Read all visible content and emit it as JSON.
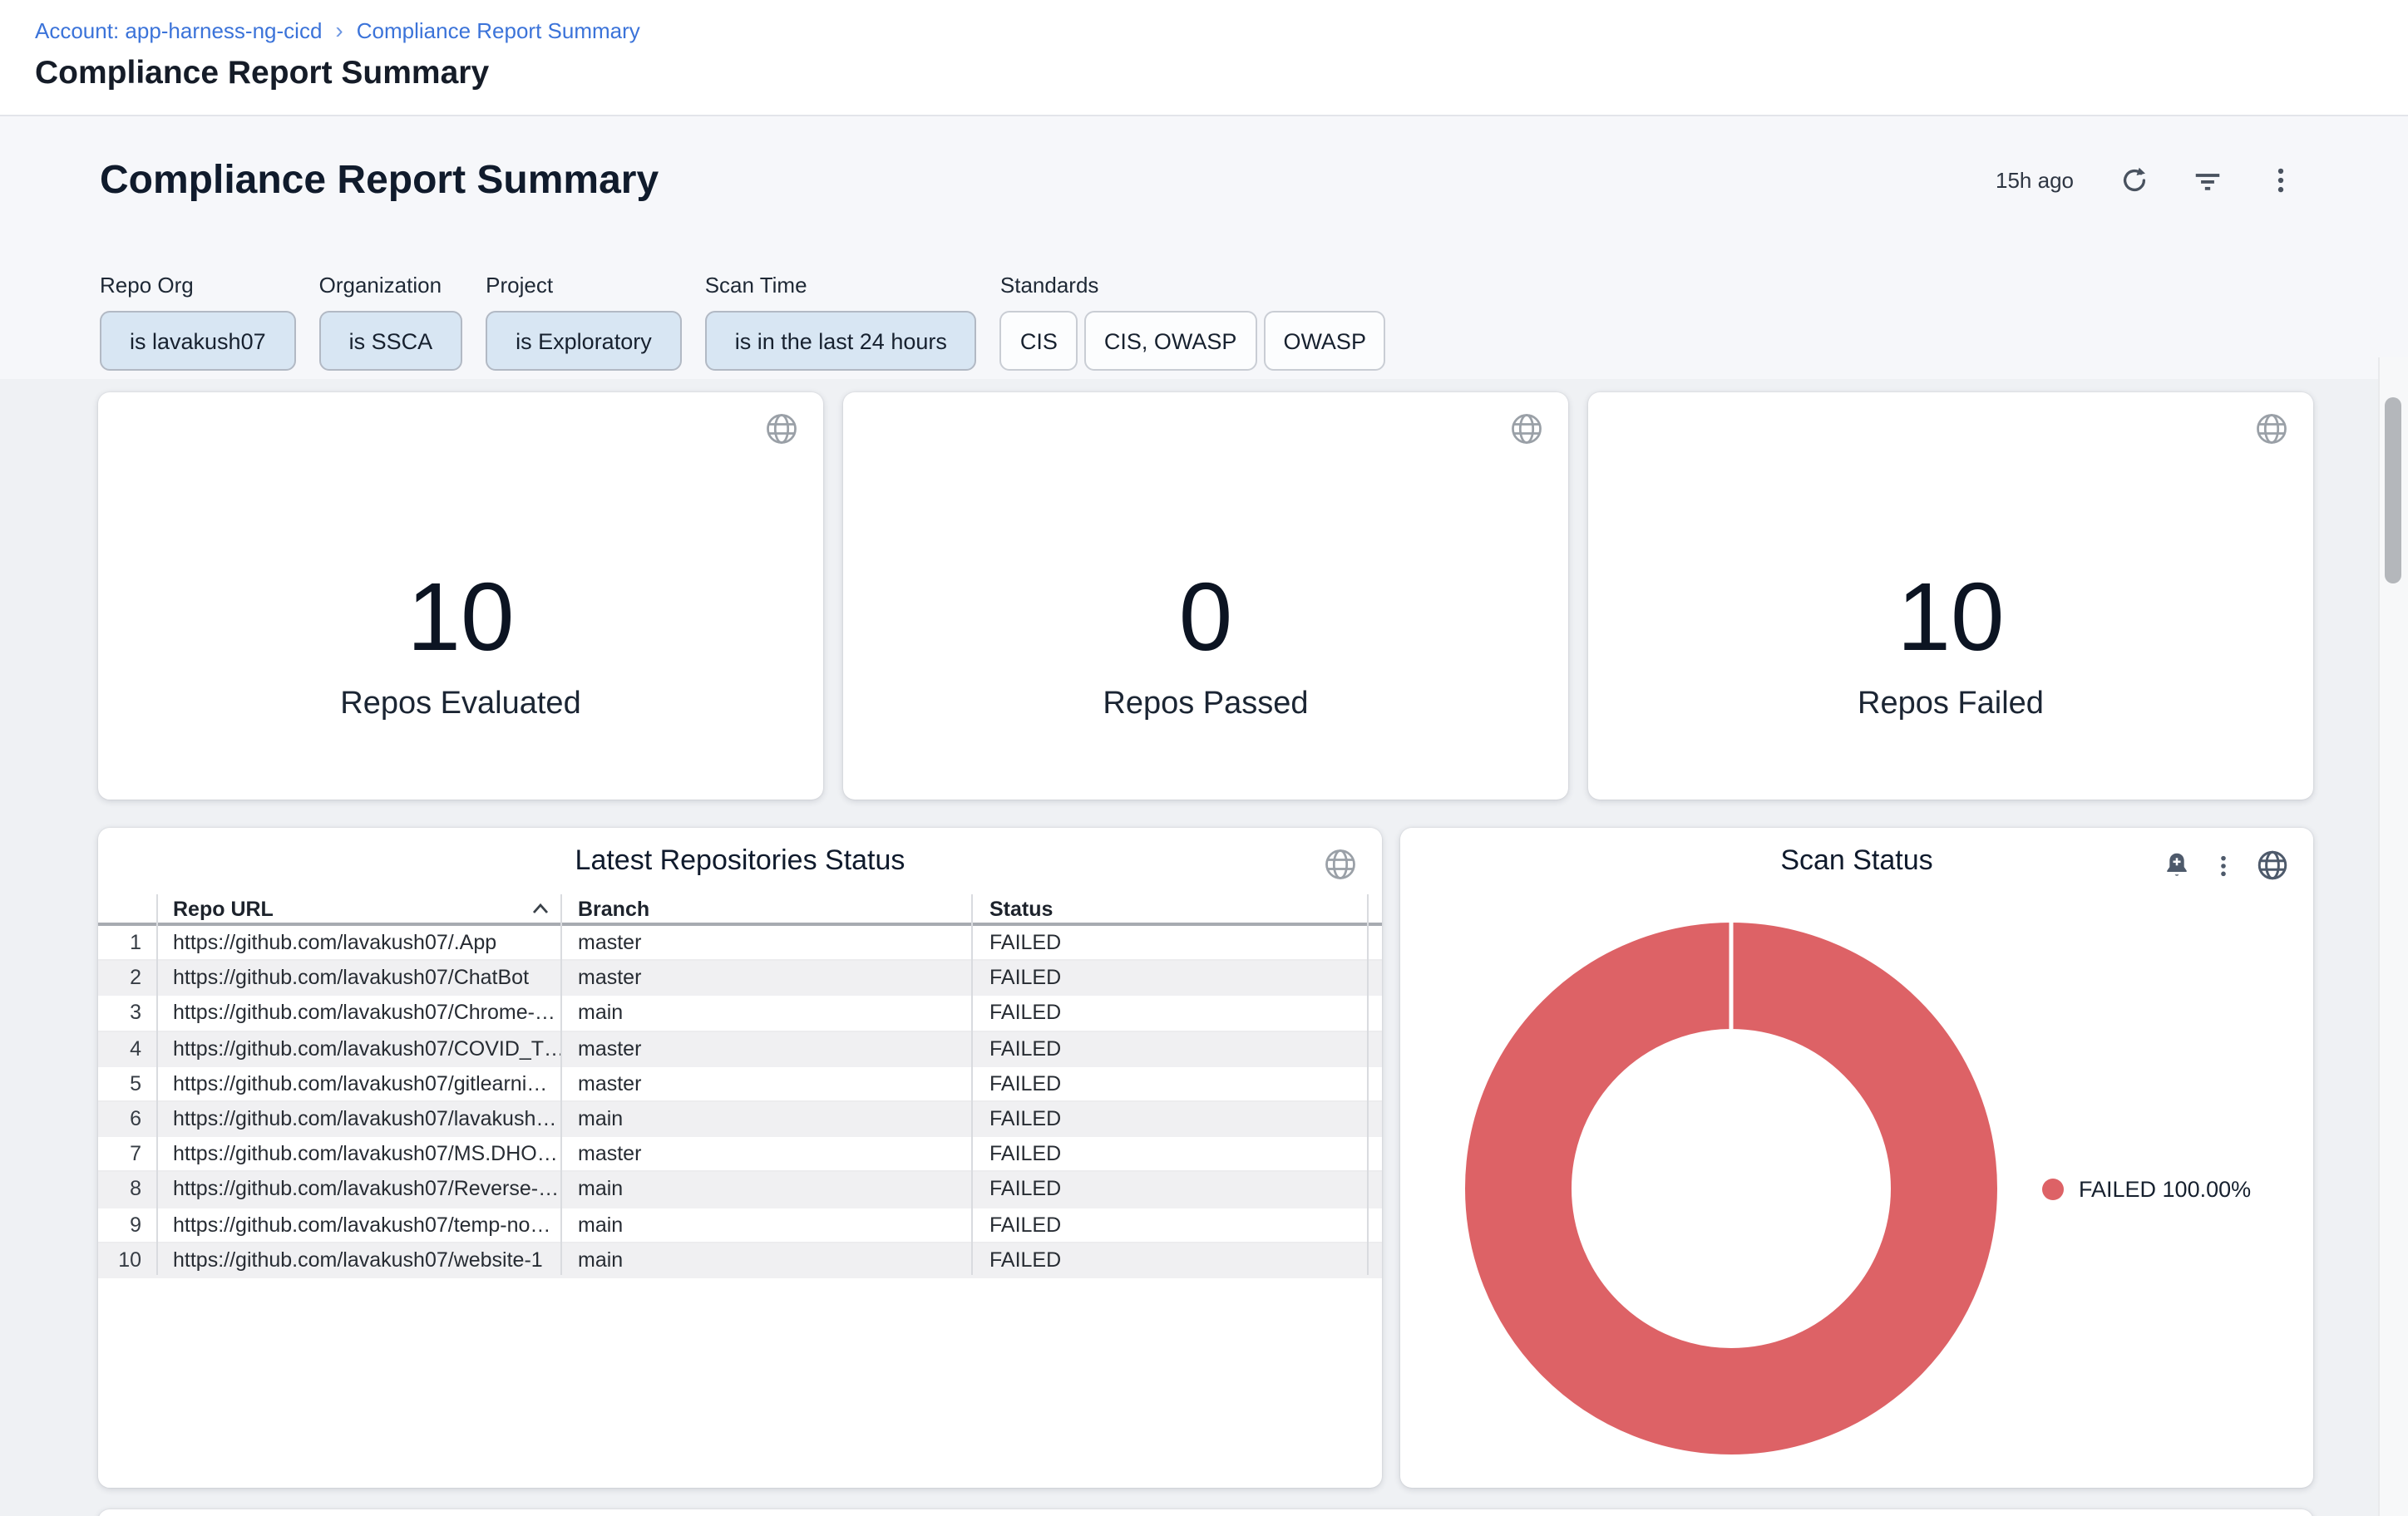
{
  "breadcrumb": {
    "account": "Account: app-harness-ng-cicd",
    "separator": "›",
    "current": "Compliance Report Summary"
  },
  "page": {
    "title": "Compliance Report Summary"
  },
  "dashboard": {
    "title": "Compliance Report Summary",
    "last_refresh": "15h ago",
    "toolbar_icons": [
      "refresh-icon",
      "filter-icon",
      "more-vertical-icon"
    ]
  },
  "filters": [
    {
      "label": "Repo Org",
      "chips": [
        {
          "text": "is lavakush07",
          "selected": true
        }
      ]
    },
    {
      "label": "Organization",
      "chips": [
        {
          "text": "is SSCA",
          "selected": true
        }
      ]
    },
    {
      "label": "Project",
      "chips": [
        {
          "text": "is Exploratory",
          "selected": true
        }
      ]
    },
    {
      "label": "Scan Time",
      "chips": [
        {
          "text": "is in the last 24 hours",
          "selected": true
        }
      ]
    },
    {
      "label": "Standards",
      "chips": [
        {
          "text": "CIS",
          "selected": false
        },
        {
          "text": "CIS, OWASP",
          "selected": false
        },
        {
          "text": "OWASP",
          "selected": false
        }
      ]
    }
  ],
  "stats": [
    {
      "value": "10",
      "label": "Repos Evaluated"
    },
    {
      "value": "0",
      "label": "Repos Passed"
    },
    {
      "value": "10",
      "label": "Repos Failed"
    }
  ],
  "repo_table": {
    "title": "Latest Repositories Status",
    "columns": {
      "repo_url": "Repo URL",
      "branch": "Branch",
      "status": "Status"
    },
    "sort": {
      "column": "Repo URL",
      "direction": "asc"
    },
    "rows": [
      {
        "num": "1",
        "repo_url": "https://github.com/lavakush07/.App",
        "branch": "master",
        "status": "FAILED"
      },
      {
        "num": "2",
        "repo_url": "https://github.com/lavakush07/ChatBot",
        "branch": "master",
        "status": "FAILED"
      },
      {
        "num": "3",
        "repo_url": "https://github.com/lavakush07/Chrome-…",
        "branch": "main",
        "status": "FAILED"
      },
      {
        "num": "4",
        "repo_url": "https://github.com/lavakush07/COVID_T…",
        "branch": "master",
        "status": "FAILED"
      },
      {
        "num": "5",
        "repo_url": "https://github.com/lavakush07/gitlearni…",
        "branch": "master",
        "status": "FAILED"
      },
      {
        "num": "6",
        "repo_url": "https://github.com/lavakush07/lavakush…",
        "branch": "main",
        "status": "FAILED"
      },
      {
        "num": "7",
        "repo_url": "https://github.com/lavakush07/MS.DHO…",
        "branch": "master",
        "status": "FAILED"
      },
      {
        "num": "8",
        "repo_url": "https://github.com/lavakush07/Reverse-…",
        "branch": "main",
        "status": "FAILED"
      },
      {
        "num": "9",
        "repo_url": "https://github.com/lavakush07/temp-no…",
        "branch": "main",
        "status": "FAILED"
      },
      {
        "num": "10",
        "repo_url": "https://github.com/lavakush07/website-1",
        "branch": "main",
        "status": "FAILED"
      }
    ]
  },
  "scan_status": {
    "title": "Scan Status",
    "legend": [
      {
        "label": "FAILED 100.00%",
        "color": "#dd6266"
      }
    ],
    "icons": [
      "bell-plus-icon",
      "more-vertical-icon",
      "globe-icon"
    ]
  },
  "chart_data": {
    "type": "pie",
    "donut": true,
    "title": "Scan Status",
    "labels": [
      "FAILED"
    ],
    "values": [
      100.0
    ],
    "unit": "%",
    "slices": [
      {
        "label": "FAILED",
        "value": 100.0,
        "color": "#dd6266"
      }
    ],
    "legend_position": "right",
    "legend_entries": [
      "FAILED 100.00%"
    ]
  },
  "colors": {
    "link_blue": "#3b73d9",
    "chip_selected_bg": "#d8e6f3",
    "failed_red": "#dd6266",
    "canvas_bg": "#eff1f4",
    "stripe_bg": "#f0f0f2"
  }
}
